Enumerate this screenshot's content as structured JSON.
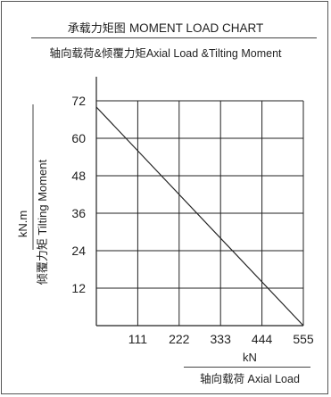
{
  "header": {
    "title_cn": "承载力矩图",
    "title_en": "MOMENT LOAD CHART",
    "subtitle": "轴向载荷&倾覆力矩Axial Load &Tilting Moment"
  },
  "chart_data": {
    "type": "line",
    "title": "承载力矩图 MOMENT LOAD CHART",
    "subtitle": "轴向载荷&倾覆力矩Axial Load &Tilting Moment",
    "xlabel_unit": "kN",
    "xlabel": "轴向载荷 Axial Load",
    "ylabel_unit": "kN.m",
    "ylabel": "倾覆力矩 Tilting Moment",
    "xlim": [
      0,
      555
    ],
    "ylim": [
      0,
      72
    ],
    "x_ticks": [
      "111",
      "222",
      "333",
      "444",
      "555"
    ],
    "y_ticks": [
      "72",
      "60",
      "48",
      "36",
      "24",
      "12"
    ],
    "grid": true,
    "series": [
      {
        "x": [
          0,
          555
        ],
        "y": [
          70,
          0
        ]
      }
    ]
  }
}
